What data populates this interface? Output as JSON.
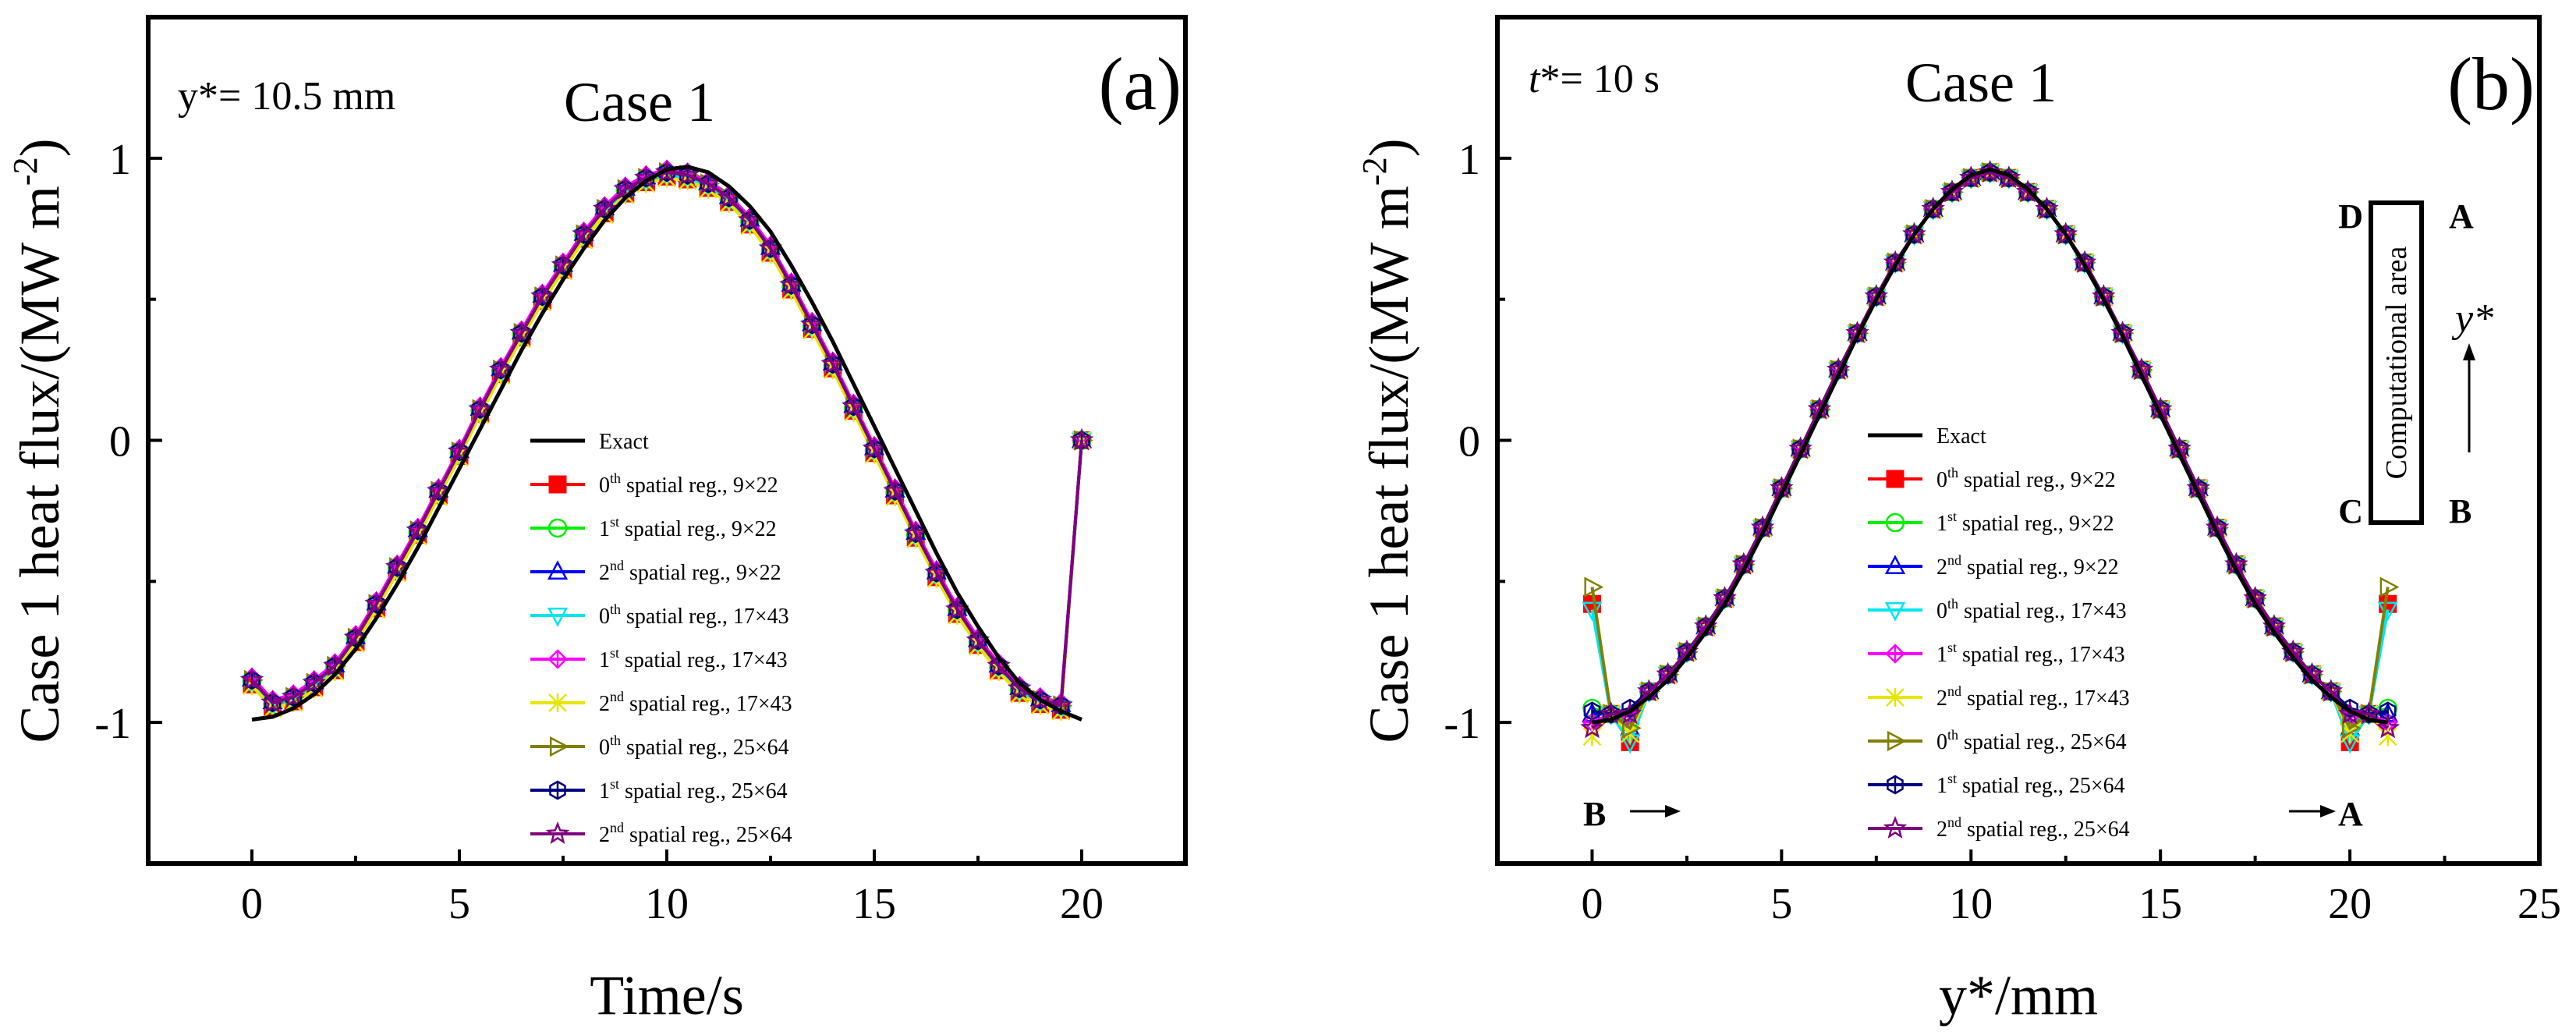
{
  "chart_data": [
    {
      "type": "line",
      "panel": "(a)",
      "title": "Case 1",
      "annotation": "y*= 10.5 mm",
      "xlabel": "Time/s",
      "ylabel": "Case 1 heat flux/(MW m",
      "ylabel_sup": "-2",
      "ylabel_close": ")",
      "xlim": [
        -2.5,
        22.5
      ],
      "ylim": [
        -1.5,
        1.5
      ],
      "xticks": [
        0,
        5,
        10,
        15,
        20
      ],
      "xtick_labels": [
        "0",
        "5",
        "10",
        "15",
        "20"
      ],
      "yticks": [
        -1,
        0,
        1
      ],
      "ytick_labels": [
        "-1",
        "0",
        "1"
      ],
      "exact": {
        "name": "Exact",
        "x": [
          0,
          0.5,
          1,
          1.5,
          2,
          2.5,
          3,
          3.5,
          4,
          4.5,
          5,
          5.5,
          6,
          6.5,
          7,
          7.5,
          8,
          8.5,
          9,
          9.5,
          10,
          10.5,
          11,
          11.5,
          12,
          12.5,
          13,
          13.5,
          14,
          14.5,
          15,
          15.5,
          16,
          16.5,
          17,
          17.5,
          18,
          18.5,
          19,
          19.5,
          20
        ],
        "y": [
          -0.99,
          -0.98,
          -0.95,
          -0.9,
          -0.83,
          -0.74,
          -0.63,
          -0.51,
          -0.38,
          -0.24,
          -0.1,
          0.04,
          0.18,
          0.32,
          0.45,
          0.57,
          0.68,
          0.78,
          0.86,
          0.92,
          0.96,
          0.97,
          0.95,
          0.9,
          0.83,
          0.74,
          0.62,
          0.49,
          0.35,
          0.2,
          0.05,
          -0.1,
          -0.25,
          -0.4,
          -0.54,
          -0.66,
          -0.77,
          -0.86,
          -0.92,
          -0.96,
          -0.99
        ]
      },
      "reg_shared": {
        "x": [
          0,
          0.5,
          1,
          1.5,
          2,
          2.5,
          3,
          3.5,
          4,
          4.5,
          5,
          5.5,
          6,
          6.5,
          7,
          7.5,
          8,
          8.5,
          9,
          9.5,
          10,
          10.5,
          11,
          11.5,
          12,
          12.5,
          13,
          13.5,
          14,
          14.5,
          15,
          15.5,
          16,
          16.5,
          17,
          17.5,
          18,
          18.5,
          19,
          19.5,
          20
        ],
        "y": [
          -0.85,
          -0.93,
          -0.91,
          -0.86,
          -0.8,
          -0.7,
          -0.58,
          -0.45,
          -0.32,
          -0.18,
          -0.04,
          0.11,
          0.25,
          0.38,
          0.51,
          0.62,
          0.73,
          0.82,
          0.89,
          0.93,
          0.95,
          0.94,
          0.91,
          0.86,
          0.78,
          0.68,
          0.55,
          0.41,
          0.27,
          0.12,
          -0.03,
          -0.18,
          -0.33,
          -0.47,
          -0.6,
          -0.71,
          -0.8,
          -0.88,
          -0.92,
          -0.94,
          0.0
        ]
      },
      "series": [
        {
          "name": "0th spatial reg., 9×22",
          "sup": "th",
          "base": "0",
          "rest": " spatial reg., 9×22",
          "color": "#ff0000",
          "marker": "square-filled",
          "dy": -0.015
        },
        {
          "name": "1st spatial reg., 9×22",
          "sup": "st",
          "base": "1",
          "rest": " spatial reg., 9×22",
          "color": "#00ee00",
          "marker": "circle",
          "dy": -0.005
        },
        {
          "name": "2nd spatial reg., 9×22",
          "sup": "nd",
          "base": "2",
          "rest": " spatial reg., 9×22",
          "color": "#0000ff",
          "marker": "triangle-up",
          "dy": 0.005
        },
        {
          "name": "0th spatial reg., 17×43",
          "sup": "th",
          "base": "0",
          "rest": " spatial reg., 17×43",
          "color": "#00e5ee",
          "marker": "triangle-down",
          "dy": -0.01
        },
        {
          "name": "1st spatial reg., 17×43",
          "sup": "st",
          "base": "1",
          "rest": " spatial reg., 17×43",
          "color": "#ff00ff",
          "marker": "diamond-plus",
          "dy": 0.01
        },
        {
          "name": "2nd spatial reg., 17×43",
          "sup": "nd",
          "base": "2",
          "rest": " spatial reg., 17×43",
          "color": "#e6e600",
          "marker": "star-x",
          "dy": -0.02
        },
        {
          "name": "0th spatial reg., 25×64",
          "sup": "th",
          "base": "0",
          "rest": " spatial reg., 25×64",
          "color": "#808000",
          "marker": "triangle-right",
          "dy": 0.0
        },
        {
          "name": "1st spatial reg., 25×64",
          "sup": "st",
          "base": "1",
          "rest": " spatial reg., 25×64",
          "color": "#000080",
          "marker": "hexagon",
          "dy": 0.0
        },
        {
          "name": "2nd spatial reg., 25×64",
          "sup": "nd",
          "base": "2",
          "rest": " spatial reg., 25×64",
          "color": "#800080",
          "marker": "star",
          "dy": 0.0
        }
      ]
    },
    {
      "type": "line",
      "panel": "(b)",
      "title": "Case 1",
      "annotation_italic": "t",
      "annotation_rest": "*= 10 s",
      "xlabel": "y*/mm",
      "ylabel": "Case 1 heat flux/(MW m",
      "ylabel_sup": "-2",
      "ylabel_close": ")",
      "xlim": [
        -2.5,
        25
      ],
      "ylim": [
        -1.5,
        1.5
      ],
      "xticks": [
        0,
        5,
        10,
        15,
        20,
        25
      ],
      "xtick_labels": [
        "0",
        "5",
        "10",
        "15",
        "20",
        "25"
      ],
      "yticks": [
        -1,
        0,
        1
      ],
      "ytick_labels": [
        "-1",
        "0",
        "1"
      ],
      "exact": {
        "name": "Exact",
        "x": [
          0,
          0.5,
          1,
          1.5,
          2,
          2.5,
          3,
          3.5,
          4,
          4.5,
          5,
          5.5,
          6,
          6.5,
          7,
          7.5,
          8,
          8.5,
          9,
          9.5,
          10,
          10.5,
          11,
          11.5,
          12,
          12.5,
          13,
          13.5,
          14,
          14.5,
          15,
          15.5,
          16,
          16.5,
          17,
          17.5,
          18,
          18.5,
          19,
          19.5,
          20,
          20.5,
          21
        ],
        "y": [
          -1.0,
          -0.99,
          -0.96,
          -0.91,
          -0.85,
          -0.77,
          -0.68,
          -0.58,
          -0.46,
          -0.33,
          -0.19,
          -0.05,
          0.09,
          0.23,
          0.37,
          0.5,
          0.62,
          0.73,
          0.82,
          0.89,
          0.94,
          0.96,
          0.94,
          0.89,
          0.82,
          0.73,
          0.62,
          0.5,
          0.37,
          0.23,
          0.09,
          -0.05,
          -0.19,
          -0.33,
          -0.46,
          -0.58,
          -0.68,
          -0.77,
          -0.85,
          -0.91,
          -0.96,
          -0.99,
          -1.0
        ]
      },
      "reg_shared": {
        "x": [
          0,
          0.5,
          1,
          1.5,
          2,
          2.5,
          3,
          3.5,
          4,
          4.5,
          5,
          5.5,
          6,
          6.5,
          7,
          7.5,
          8,
          8.5,
          9,
          9.5,
          10,
          10.5,
          11,
          11.5,
          12,
          12.5,
          13,
          13.5,
          14,
          14.5,
          15,
          15.5,
          16,
          16.5,
          17,
          17.5,
          18,
          18.5,
          19,
          19.5,
          20,
          20.5,
          21
        ],
        "y": [
          -0.98,
          -0.97,
          -0.94,
          -0.89,
          -0.83,
          -0.75,
          -0.66,
          -0.56,
          -0.44,
          -0.31,
          -0.17,
          -0.03,
          0.11,
          0.25,
          0.38,
          0.51,
          0.63,
          0.73,
          0.82,
          0.88,
          0.93,
          0.95,
          0.93,
          0.88,
          0.82,
          0.73,
          0.63,
          0.51,
          0.38,
          0.25,
          0.11,
          -0.03,
          -0.17,
          -0.31,
          -0.44,
          -0.56,
          -0.66,
          -0.75,
          -0.83,
          -0.89,
          -0.94,
          -0.97,
          -0.98
        ]
      },
      "series": [
        {
          "name": "0th spatial reg., 9×22",
          "sup": "th",
          "base": "0",
          "rest": " spatial reg., 9×22",
          "color": "#ff0000",
          "marker": "square-filled",
          "ends": [
            -0.58,
            -1.07,
            -1.07,
            -0.58
          ]
        },
        {
          "name": "1st spatial reg., 9×22",
          "sup": "st",
          "base": "1",
          "rest": " spatial reg., 9×22",
          "color": "#00ee00",
          "marker": "circle",
          "ends": [
            -0.95,
            -1.0,
            -1.0,
            -0.95
          ]
        },
        {
          "name": "2nd spatial reg., 9×22",
          "sup": "nd",
          "base": "2",
          "rest": " spatial reg., 9×22",
          "color": "#0000ff",
          "marker": "triangle-up",
          "ends": [
            -0.97,
            -1.02,
            -1.02,
            -0.97
          ]
        },
        {
          "name": "0th spatial reg., 17×43",
          "sup": "th",
          "base": "0",
          "rest": " spatial reg., 17×43",
          "color": "#00e5ee",
          "marker": "triangle-down",
          "ends": [
            -0.6,
            -1.07,
            -1.07,
            -0.6
          ]
        },
        {
          "name": "1st spatial reg., 17×43",
          "sup": "st",
          "base": "1",
          "rest": " spatial reg., 17×43",
          "color": "#ff00ff",
          "marker": "diamond-plus",
          "ends": [
            -1.0,
            -0.98,
            -0.98,
            -1.0
          ]
        },
        {
          "name": "2nd spatial reg., 17×43",
          "sup": "nd",
          "base": "2",
          "rest": " spatial reg., 17×43",
          "color": "#e6e600",
          "marker": "star-x",
          "ends": [
            -1.05,
            -1.04,
            -1.04,
            -1.05
          ]
        },
        {
          "name": "0th spatial reg., 25×64",
          "sup": "th",
          "base": "0",
          "rest": " spatial reg., 25×64",
          "color": "#808000",
          "marker": "triangle-right",
          "ends": [
            -0.52,
            -1.02,
            -1.02,
            -0.52
          ]
        },
        {
          "name": "1st spatial reg., 25×64",
          "sup": "st",
          "base": "1",
          "rest": " spatial reg., 25×64",
          "color": "#000080",
          "marker": "hexagon",
          "ends": [
            -0.96,
            -0.95,
            -0.95,
            -0.96
          ]
        },
        {
          "name": "2nd spatial reg., 25×64",
          "sup": "nd",
          "base": "2",
          "rest": " spatial reg., 25×64",
          "color": "#800080",
          "marker": "star",
          "ends": [
            -1.02,
            -0.97,
            -0.97,
            -1.02
          ]
        }
      ],
      "inset": {
        "corner_d": "D",
        "corner_a": "A",
        "corner_c": "C",
        "corner_b": "B",
        "area_label": "Computational area",
        "arrow_label": "y*"
      },
      "bottom_left_label": "B",
      "bottom_right_label": "A"
    }
  ]
}
